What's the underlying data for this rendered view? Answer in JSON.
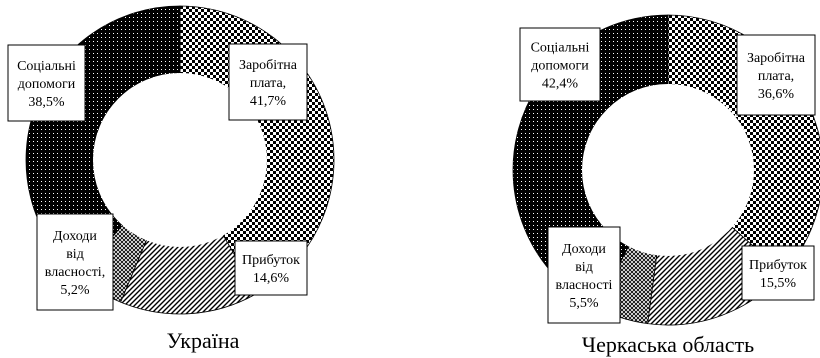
{
  "chart_data": [
    {
      "type": "pie",
      "variant": "donut",
      "caption": "Україна",
      "slices": [
        {
          "label_lines": [
            "Заробітна",
            "плата,",
            "41,7%"
          ],
          "value": 41.7,
          "pattern": "checker"
        },
        {
          "label_lines": [
            "Прибуток",
            "14,6%"
          ],
          "value": 14.6,
          "pattern": "diagonal"
        },
        {
          "label_lines": [
            "Доходи",
            "від",
            "власності,",
            "5,2%"
          ],
          "value": 5.2,
          "pattern": "crosshatch"
        },
        {
          "label_lines": [
            "Соціальні",
            "допомоги",
            "38,5%"
          ],
          "value": 38.5,
          "pattern": "dots"
        }
      ]
    },
    {
      "type": "pie",
      "variant": "donut",
      "caption": "Черкаська область",
      "slices": [
        {
          "label_lines": [
            "Заробітна",
            "плата,",
            "36,6%"
          ],
          "value": 36.6,
          "pattern": "checker"
        },
        {
          "label_lines": [
            "Прибуток",
            "15,5%"
          ],
          "value": 15.5,
          "pattern": "diagonal"
        },
        {
          "label_lines": [
            "Доходи",
            "від",
            "власності",
            "5,5%"
          ],
          "value": 5.5,
          "pattern": "crosshatch"
        },
        {
          "label_lines": [
            "Соціальні",
            "допомоги",
            "42,4%"
          ],
          "value": 42.4,
          "pattern": "dots"
        }
      ]
    }
  ]
}
